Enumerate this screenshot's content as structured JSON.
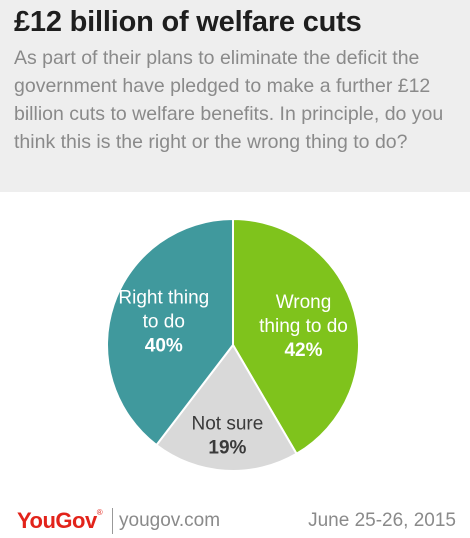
{
  "title": "£12 billion of welfare cuts",
  "subtitle": "As part of their plans to eliminate the deficit the government have pledged to make a further £12 billion cuts to welfare benefits. In principle, do you think this is the right or the wrong thing to do?",
  "chart_data": {
    "type": "pie",
    "title": "£12 billion of welfare cuts",
    "slices": [
      {
        "label_lines": [
          "Wrong",
          "thing to do"
        ],
        "value": 42,
        "value_label": "42%",
        "color": "#7fc31c"
      },
      {
        "label_lines": [
          "Not sure"
        ],
        "value": 19,
        "value_label": "19%",
        "color": "#d9d9d9"
      },
      {
        "label_lines": [
          "Right thing",
          "to do"
        ],
        "value": 40,
        "value_label": "40%",
        "color": "#40999d"
      }
    ],
    "start": "12 o'clock",
    "direction": "clockwise"
  },
  "footer": {
    "logo_text": "YouGov",
    "logo_mark": "®",
    "site": "yougov.com",
    "date": "June 25-26, 2015"
  },
  "colors": {
    "header_bg": "#eeeeee",
    "brand_red": "#e2231a",
    "muted_text": "#8a8a8a"
  }
}
